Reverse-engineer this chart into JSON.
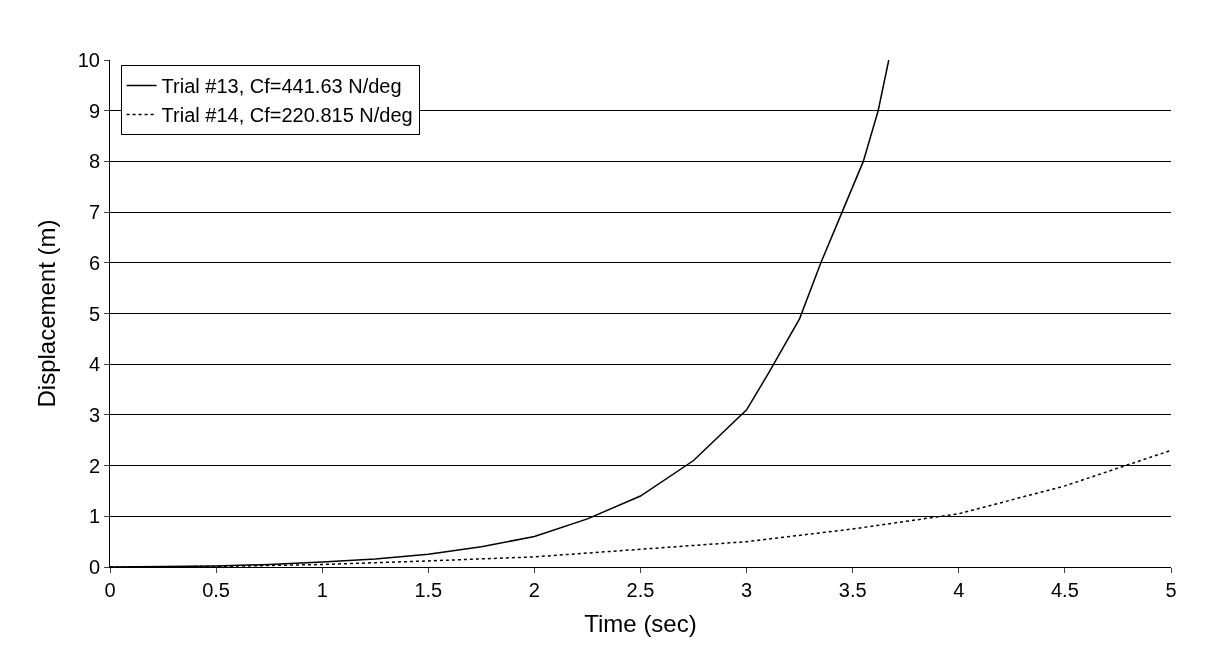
{
  "chart_data": {
    "type": "line",
    "xlabel": "Time (sec)",
    "ylabel": "Displacement (m)",
    "xlim": [
      0,
      5
    ],
    "xticks": [
      0,
      0.5,
      1,
      1.5,
      2,
      2.5,
      3,
      3.5,
      4,
      4.5,
      5
    ],
    "ylim": [
      0,
      10
    ],
    "yticks": [
      0,
      1,
      2,
      3,
      4,
      5,
      6,
      7,
      8,
      9,
      10
    ],
    "grid": "y",
    "legend": "top left",
    "marker": "none",
    "series": [
      {
        "name": "Trial #13, Cf=441.63 N/deg",
        "color": "#000000",
        "line_style": "solid",
        "x": [
          0,
          0.5,
          0.75,
          1,
          1.25,
          1.5,
          1.75,
          2,
          2.25,
          2.5,
          2.75,
          3,
          3.1,
          3.25,
          3.35,
          3.45,
          3.55,
          3.62,
          3.67
        ],
        "values": [
          0,
          0.02,
          0.05,
          0.1,
          0.16,
          0.25,
          0.4,
          0.6,
          0.95,
          1.4,
          2.1,
          3.1,
          3.8,
          4.9,
          6.0,
          7.0,
          8.0,
          9.0,
          10
        ]
      },
      {
        "name": "Trial #14, Cf=220.815 N/deg",
        "color": "#000000",
        "line_style": "dotted",
        "x": [
          0,
          0.5,
          1,
          1.5,
          2,
          2.5,
          3,
          3.5,
          4,
          4.5,
          5
        ],
        "values": [
          0,
          0.01,
          0.05,
          0.12,
          0.2,
          0.35,
          0.5,
          0.75,
          1.05,
          1.6,
          2.3
        ]
      }
    ]
  }
}
